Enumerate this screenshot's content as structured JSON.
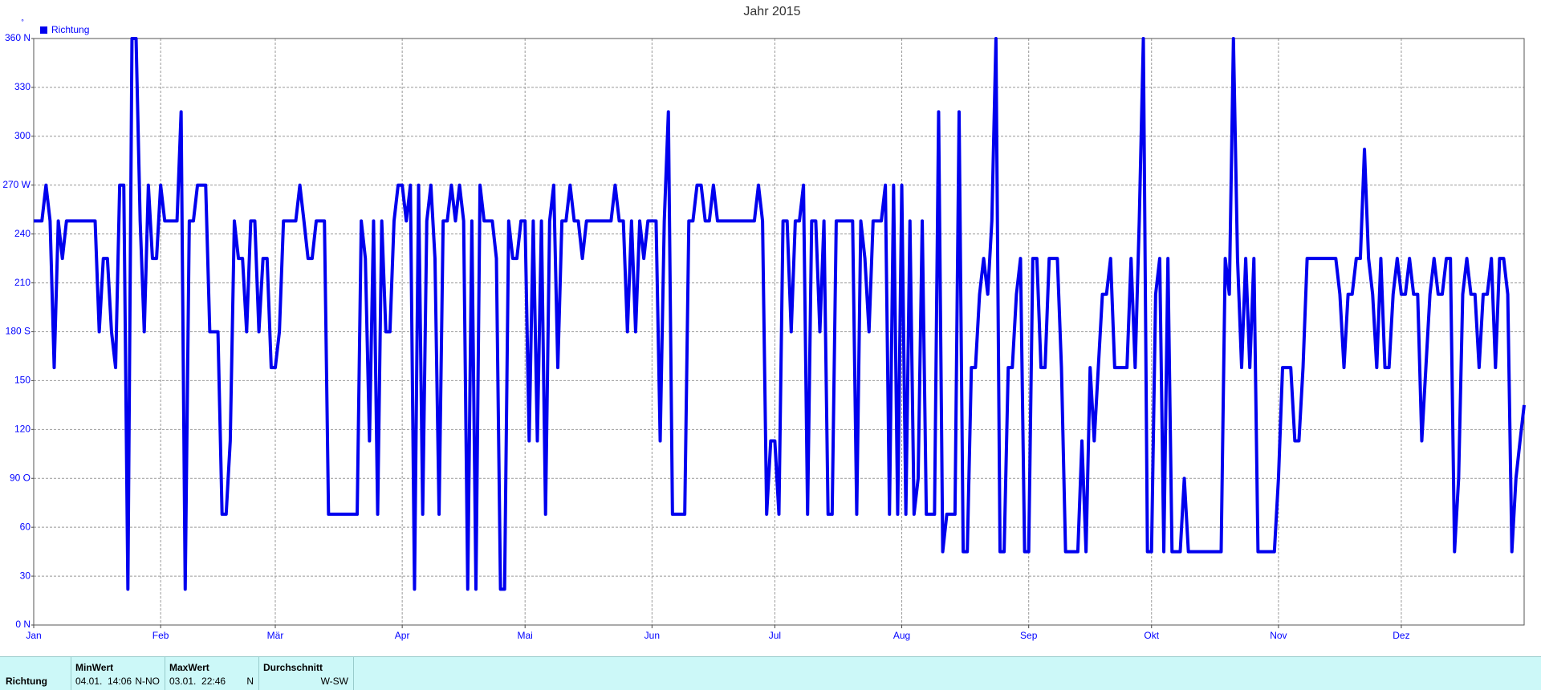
{
  "chart_data": {
    "type": "line",
    "title": "Jahr 2015",
    "y_unit": "°",
    "categories": [
      "Jan",
      null,
      null,
      null,
      null,
      null,
      null,
      null,
      null,
      null,
      null,
      null,
      null,
      null,
      null,
      null,
      null,
      null,
      null,
      null,
      null,
      null,
      null,
      null,
      null,
      null,
      null,
      null,
      null,
      null,
      null,
      "Feb",
      null,
      null,
      null,
      null,
      null,
      null,
      null,
      null,
      null,
      null,
      null,
      null,
      null,
      null,
      null,
      null,
      null,
      null,
      null,
      null,
      null,
      null,
      null,
      null,
      null,
      null,
      null,
      "Mär",
      null,
      null,
      null,
      null,
      null,
      null,
      null,
      null,
      null,
      null,
      null,
      null,
      null,
      null,
      null,
      null,
      null,
      null,
      null,
      null,
      null,
      null,
      null,
      null,
      null,
      null,
      null,
      null,
      null,
      null,
      "Apr",
      null,
      null,
      null,
      null,
      null,
      null,
      null,
      null,
      null,
      null,
      null,
      null,
      null,
      null,
      null,
      null,
      null,
      null,
      null,
      null,
      null,
      null,
      null,
      null,
      null,
      null,
      null,
      null,
      null,
      "Mai",
      null,
      null,
      null,
      null,
      null,
      null,
      null,
      null,
      null,
      null,
      null,
      null,
      null,
      null,
      null,
      null,
      null,
      null,
      null,
      null,
      null,
      null,
      null,
      null,
      null,
      null,
      null,
      null,
      null,
      null,
      "Jun",
      null,
      null,
      null,
      null,
      null,
      null,
      null,
      null,
      null,
      null,
      null,
      null,
      null,
      null,
      null,
      null,
      null,
      null,
      null,
      null,
      null,
      null,
      null,
      null,
      null,
      null,
      null,
      null,
      null,
      "Jul",
      null,
      null,
      null,
      null,
      null,
      null,
      null,
      null,
      null,
      null,
      null,
      null,
      null,
      null,
      null,
      null,
      null,
      null,
      null,
      null,
      null,
      null,
      null,
      null,
      null,
      null,
      null,
      null,
      null,
      null,
      "Aug",
      null,
      null,
      null,
      null,
      null,
      null,
      null,
      null,
      null,
      null,
      null,
      null,
      null,
      null,
      null,
      null,
      null,
      null,
      null,
      null,
      null,
      null,
      null,
      null,
      null,
      null,
      null,
      null,
      null,
      null,
      "Sep",
      null,
      null,
      null,
      null,
      null,
      null,
      null,
      null,
      null,
      null,
      null,
      null,
      null,
      null,
      null,
      null,
      null,
      null,
      null,
      null,
      null,
      null,
      null,
      null,
      null,
      null,
      null,
      null,
      null,
      "Okt",
      null,
      null,
      null,
      null,
      null,
      null,
      null,
      null,
      null,
      null,
      null,
      null,
      null,
      null,
      null,
      null,
      null,
      null,
      null,
      null,
      null,
      null,
      null,
      null,
      null,
      null,
      null,
      null,
      null,
      null,
      "Nov",
      null,
      null,
      null,
      null,
      null,
      null,
      null,
      null,
      null,
      null,
      null,
      null,
      null,
      null,
      null,
      null,
      null,
      null,
      null,
      null,
      null,
      null,
      null,
      null,
      null,
      null,
      null,
      null,
      null,
      "Dez",
      null,
      null,
      null,
      null,
      null,
      null,
      null,
      null,
      null,
      null,
      null,
      null,
      null,
      null,
      null,
      null,
      null,
      null,
      null,
      null,
      null,
      null,
      null,
      null,
      null,
      null,
      null,
      null,
      null,
      null
    ],
    "series": [
      {
        "name": "Richtung",
        "color": "#0000ee",
        "values": [
          248,
          248,
          248,
          270,
          248,
          158,
          248,
          225,
          248,
          248,
          248,
          248,
          248,
          248,
          248,
          248,
          180,
          225,
          225,
          180,
          158,
          270,
          270,
          22,
          360,
          360,
          248,
          180,
          270,
          225,
          225,
          270,
          248,
          248,
          248,
          248,
          315,
          22,
          248,
          248,
          270,
          270,
          270,
          180,
          180,
          180,
          68,
          68,
          113,
          248,
          225,
          225,
          180,
          248,
          248,
          180,
          225,
          225,
          158,
          158,
          180,
          248,
          248,
          248,
          248,
          270,
          248,
          225,
          225,
          248,
          248,
          248,
          68,
          68,
          68,
          68,
          68,
          68,
          68,
          68,
          248,
          225,
          113,
          248,
          68,
          248,
          180,
          180,
          248,
          270,
          270,
          248,
          270,
          22,
          270,
          68,
          248,
          270,
          225,
          68,
          248,
          248,
          270,
          248,
          270,
          248,
          22,
          248,
          22,
          270,
          248,
          248,
          248,
          225,
          22,
          22,
          248,
          225,
          225,
          248,
          248,
          113,
          248,
          113,
          248,
          68,
          248,
          270,
          158,
          248,
          248,
          270,
          248,
          248,
          225,
          248,
          248,
          248,
          248,
          248,
          248,
          248,
          270,
          248,
          248,
          180,
          248,
          180,
          248,
          225,
          248,
          248,
          248,
          113,
          248,
          315,
          68,
          68,
          68,
          68,
          248,
          248,
          270,
          270,
          248,
          248,
          270,
          248,
          248,
          248,
          248,
          248,
          248,
          248,
          248,
          248,
          248,
          270,
          248,
          68,
          113,
          113,
          68,
          248,
          248,
          180,
          248,
          248,
          270,
          68,
          248,
          248,
          180,
          248,
          68,
          68,
          248,
          248,
          248,
          248,
          248,
          68,
          248,
          225,
          180,
          248,
          248,
          248,
          270,
          68,
          270,
          68,
          270,
          68,
          248,
          68,
          90,
          248,
          68,
          68,
          68,
          315,
          45,
          68,
          68,
          68,
          315,
          45,
          45,
          158,
          158,
          203,
          225,
          203,
          248,
          360,
          45,
          45,
          158,
          158,
          203,
          225,
          45,
          45,
          225,
          225,
          158,
          158,
          225,
          225,
          225,
          158,
          45,
          45,
          45,
          45,
          113,
          45,
          158,
          113,
          158,
          203,
          203,
          225,
          158,
          158,
          158,
          158,
          225,
          158,
          248,
          360,
          45,
          45,
          203,
          225,
          45,
          225,
          45,
          45,
          45,
          90,
          45,
          45,
          45,
          45,
          45,
          45,
          45,
          45,
          45,
          225,
          203,
          360,
          225,
          158,
          225,
          158,
          225,
          45,
          45,
          45,
          45,
          45,
          90,
          158,
          158,
          158,
          113,
          113,
          158,
          225,
          225,
          225,
          225,
          225,
          225,
          225,
          225,
          203,
          158,
          203,
          203,
          225,
          225,
          292,
          225,
          203,
          158,
          225,
          158,
          158,
          203,
          225,
          203,
          203,
          225,
          203,
          203,
          113,
          158,
          203,
          225,
          203,
          203,
          225,
          225,
          45,
          90,
          203,
          225,
          203,
          203,
          158,
          203,
          203,
          225,
          158,
          225,
          225,
          203,
          45,
          90,
          113,
          135
        ]
      }
    ],
    "ylim": [
      0,
      360
    ],
    "yticks": [
      {
        "value": 0,
        "label": "0 N"
      },
      30,
      60,
      {
        "value": 90,
        "label": "90  O"
      },
      120,
      150,
      {
        "value": 180,
        "label": "180 S"
      },
      210,
      240,
      {
        "value": 270,
        "label": "270 W"
      },
      300,
      330,
      {
        "value": 360,
        "label": "360 N"
      }
    ],
    "grid": true,
    "legend": "top-left"
  },
  "stats_panel": {
    "row_label": "Richtung",
    "columns": [
      {
        "header": "MinWert",
        "date": "04.01.  14:06",
        "value": "N-NO"
      },
      {
        "header": "MaxWert",
        "date": "03.01.  22:46",
        "value": "N"
      },
      {
        "header": "Durchschnitt",
        "value": "W-SW"
      }
    ]
  }
}
